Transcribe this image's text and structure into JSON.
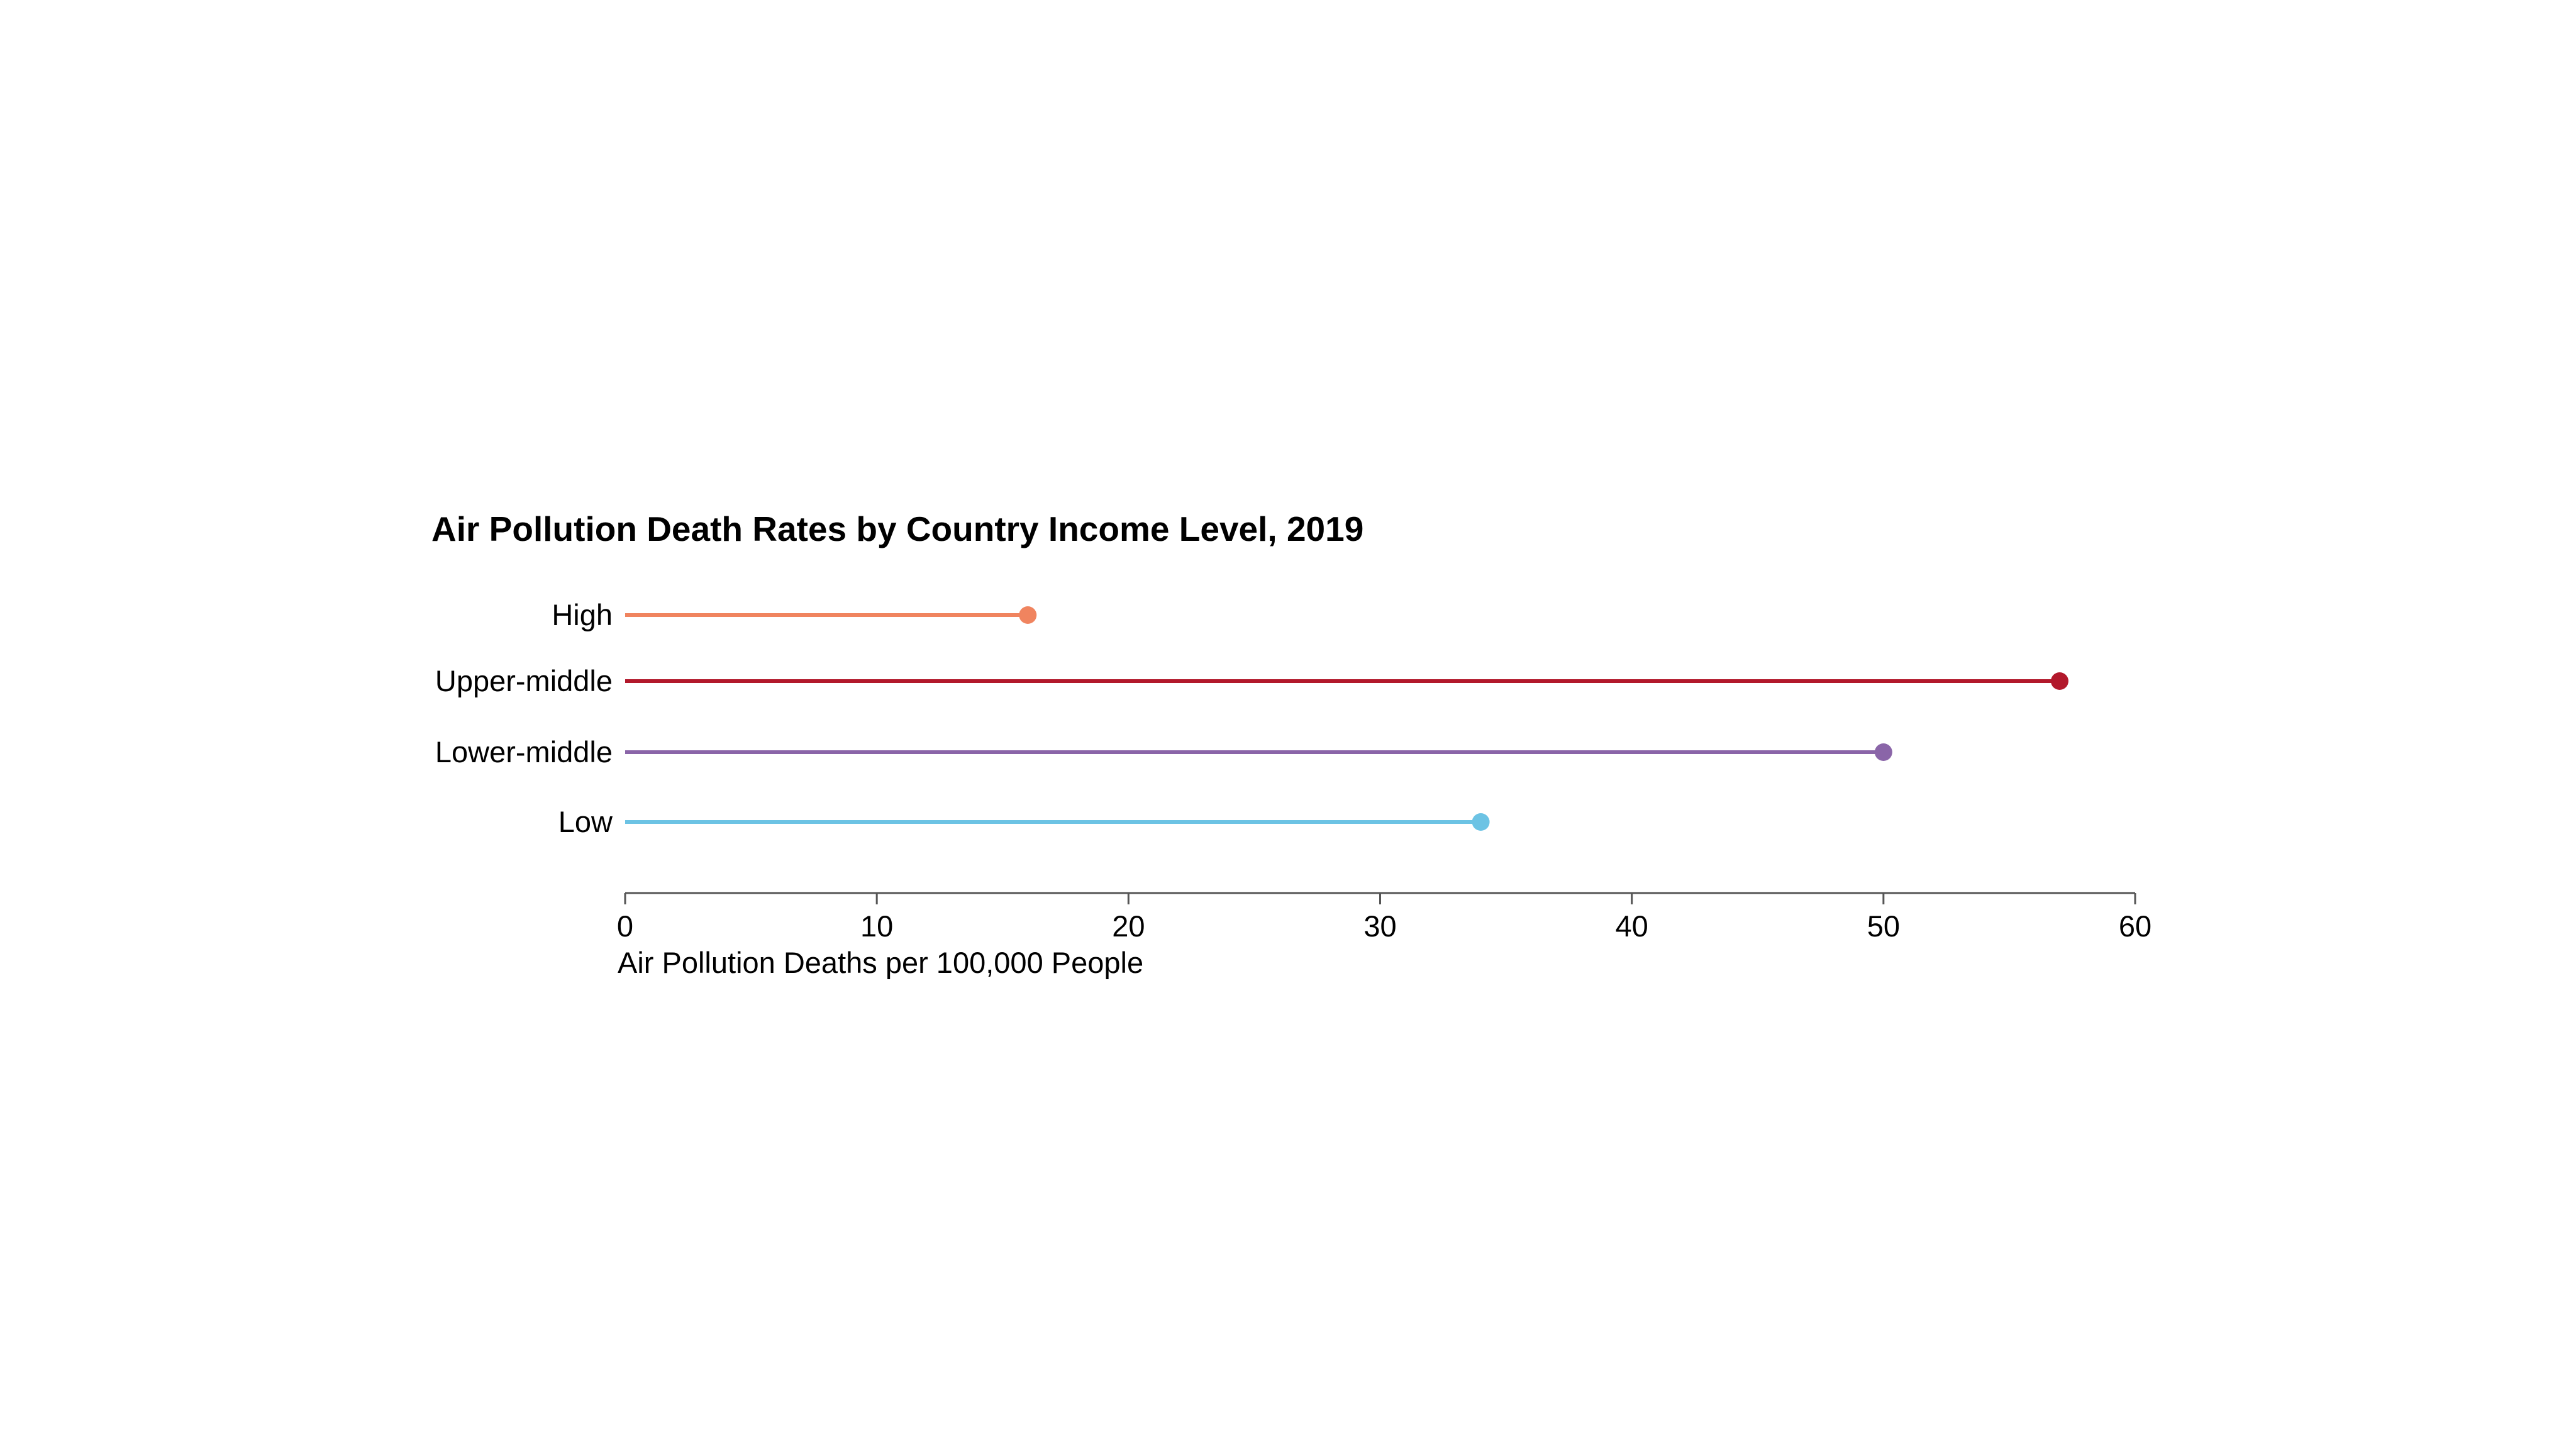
{
  "chart_data": {
    "type": "lollipop",
    "title": "Air Pollution Death Rates by Country Income Level, 2019",
    "xlabel": "Air Pollution Deaths per 100,000 People",
    "ylabel": "",
    "xlim": [
      0,
      60
    ],
    "x_ticks": [
      0,
      10,
      20,
      30,
      40,
      50,
      60
    ],
    "grid": false,
    "categories": [
      "High",
      "Upper-middle",
      "Lower-middle",
      "Low"
    ],
    "values": [
      16,
      57,
      50,
      34
    ],
    "colors": [
      "#F0845F",
      "#B2182B",
      "#8A65A8",
      "#6CC3E4"
    ]
  }
}
